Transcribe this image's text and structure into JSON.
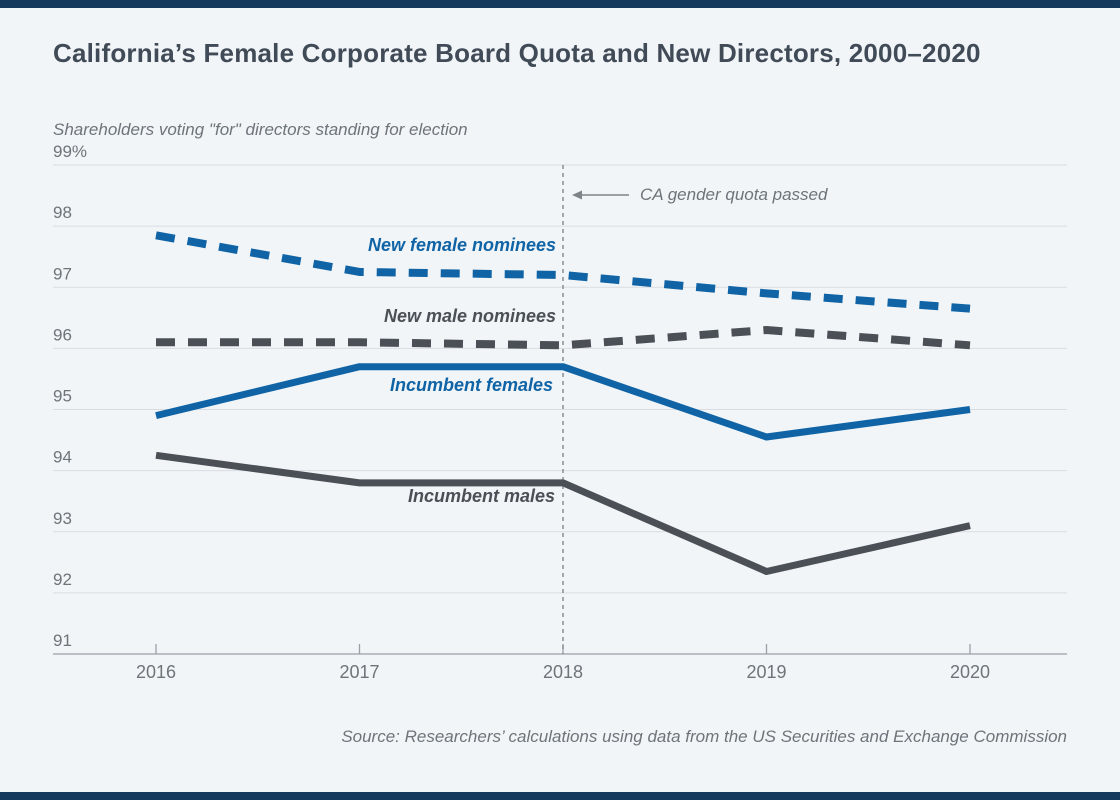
{
  "title": "California’s Female Corporate Board Quota and New Directors, 2000–2020",
  "y_axis_title": "Shareholders voting \"for\" directors standing for election",
  "source": "Source: Researchers’ calculations using data from the US Securities and Exchange Commission",
  "colors": {
    "accent_bar": "#15395c",
    "blue_series": "#1064a6",
    "dark_series": "#4a5056",
    "gridline": "#d9dde1",
    "axis": "#99a0a6",
    "text_gray": "#6d747a",
    "background": "#f1f5f8"
  },
  "chart_data": {
    "type": "line",
    "x": [
      2016,
      2017,
      2018,
      2019,
      2020
    ],
    "x_labels": [
      "2016",
      "2017",
      "2018",
      "2019",
      "2020"
    ],
    "y_ticks": [
      {
        "value": 99,
        "label": "99%"
      },
      {
        "value": 98,
        "label": "98"
      },
      {
        "value": 97,
        "label": "97"
      },
      {
        "value": 96,
        "label": "96"
      },
      {
        "value": 95,
        "label": "95"
      },
      {
        "value": 94,
        "label": "94"
      },
      {
        "value": 93,
        "label": "93"
      },
      {
        "value": 92,
        "label": "92"
      },
      {
        "value": 91,
        "label": "91"
      }
    ],
    "ylim": [
      91,
      99
    ],
    "grid": true,
    "legend_position": "inline-labels",
    "series": [
      {
        "name": "New female nominees",
        "style": "dashed",
        "color": "#1064a6",
        "values": [
          97.85,
          97.25,
          97.2,
          96.9,
          96.65
        ]
      },
      {
        "name": "New male nominees",
        "style": "dashed",
        "color": "#4a5056",
        "values": [
          96.1,
          96.1,
          96.05,
          96.3,
          96.05
        ]
      },
      {
        "name": "Incumbent females",
        "style": "solid",
        "color": "#1064a6",
        "values": [
          94.9,
          95.7,
          95.7,
          94.55,
          95.0
        ]
      },
      {
        "name": "Incumbent males",
        "style": "solid",
        "color": "#4a5056",
        "values": [
          94.25,
          93.8,
          93.8,
          92.35,
          93.1
        ]
      }
    ],
    "event_line": {
      "x": 2018,
      "label": "CA gender quota passed"
    }
  }
}
